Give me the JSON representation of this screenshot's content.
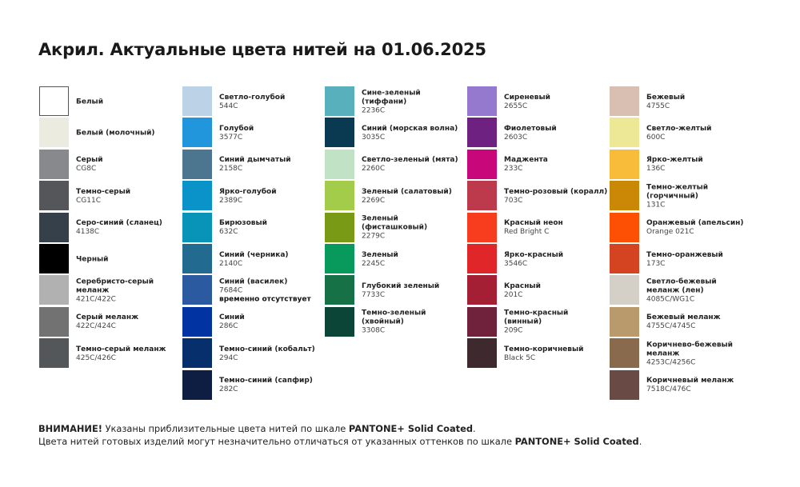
{
  "title": "Акрил. Актуальные цвета нитей на 01.06.2025",
  "columns": [
    [
      {
        "name": "Белый",
        "code": "",
        "color": "#ffffff",
        "border": true
      },
      {
        "name": "Белый (молочный)",
        "code": "",
        "color": "#ebebe0"
      },
      {
        "name": "Серый",
        "code": "CG8C",
        "color": "#88898c"
      },
      {
        "name": "Темно-серый",
        "code": "CG11C",
        "color": "#55565a"
      },
      {
        "name": "Серо-синий (сланец)",
        "code": "4138C",
        "color": "#36404a"
      },
      {
        "name": "Черный",
        "code": "",
        "color": "#000000"
      },
      {
        "name": "Серебристо-серый меланж",
        "code": "421C/422C",
        "color": "#b0b1b0"
      },
      {
        "name": "Серый меланж",
        "code": "422C/424C",
        "color": "#717271"
      },
      {
        "name": "Темно-серый меланж",
        "code": "425C/426C",
        "color": "#53575a"
      }
    ],
    [
      {
        "name": "Светло-голубой",
        "code": "544C",
        "color": "#bcd3e7"
      },
      {
        "name": "Голубой",
        "code": "3577C",
        "color": "#2196dc"
      },
      {
        "name": "Синий дымчатый",
        "code": "2158C",
        "color": "#4c7690"
      },
      {
        "name": "Ярко-голубой",
        "code": "2389C",
        "color": "#0993c8"
      },
      {
        "name": "Бирюзовый",
        "code": "632C",
        "color": "#0893b8"
      },
      {
        "name": "Синий (черника)",
        "code": "2140C",
        "color": "#226a90"
      },
      {
        "name": "Синий (василек)",
        "code": "7684C",
        "status": "временно отсутствует",
        "color": "#2c5aa0"
      },
      {
        "name": "Синий",
        "code": "286C",
        "color": "#0233a3"
      },
      {
        "name": "Темно-синий (кобальт)",
        "code": "294C",
        "color": "#072f6c"
      },
      {
        "name": "Темно-синий (сапфир)",
        "code": "282C",
        "color": "#0e1d42"
      }
    ],
    [
      {
        "name": "Сине-зеленый (тиффани)",
        "code": "2236C",
        "color": "#58b0bd"
      },
      {
        "name": "Синий (морская волна)",
        "code": "3035C",
        "color": "#0a3a52"
      },
      {
        "name": "Светло-зеленый (мята)",
        "code": "2260C",
        "color": "#c2e2c6"
      },
      {
        "name": "Зеленый (салатовый)",
        "code": "2269C",
        "color": "#a2cc4a"
      },
      {
        "name": "Зеленый (фисташковый)",
        "code": "2279C",
        "color": "#789a14"
      },
      {
        "name": "Зеленый",
        "code": "2245C",
        "color": "#079a5c"
      },
      {
        "name": "Глубокий зеленый",
        "code": "7733C",
        "color": "#177147"
      },
      {
        "name": "Темно-зеленый (хвойный)",
        "code": "3308C",
        "color": "#0a4538"
      }
    ],
    [
      {
        "name": "Сиреневый",
        "code": "2655C",
        "color": "#9479cf"
      },
      {
        "name": "Фиолетовый",
        "code": "2603C",
        "color": "#6e2181"
      },
      {
        "name": "Маджента",
        "code": "233C",
        "color": "#c8087a"
      },
      {
        "name": "Темно-розовый (коралл)",
        "code": "703C",
        "color": "#bc3a4c"
      },
      {
        "name": "Красный неон",
        "code": "Red Bright C",
        "color": "#f83c1e"
      },
      {
        "name": "Ярко-красный",
        "code": "3546C",
        "color": "#e02628"
      },
      {
        "name": "Красный",
        "code": "201C",
        "color": "#a41e34"
      },
      {
        "name": "Темно-красный (винный)",
        "code": "209C",
        "color": "#70213c"
      },
      {
        "name": "Темно-коричневый",
        "code": "Black 5C",
        "color": "#3e2a2e"
      }
    ],
    [
      {
        "name": "Бежевый",
        "code": "4755C",
        "color": "#d8bfb2"
      },
      {
        "name": "Светло-желтый",
        "code": "600C",
        "color": "#ede895"
      },
      {
        "name": "Ярко-желтый",
        "code": "136C",
        "color": "#f8bc3a"
      },
      {
        "name": "Темно-желтый (горчичный)",
        "code": "131C",
        "color": "#ca8806"
      },
      {
        "name": "Оранжевый (апельсин)",
        "code": "Orange 021C",
        "color": "#fd5004"
      },
      {
        "name": "Темно-оранжевый",
        "code": "173C",
        "color": "#d44420"
      },
      {
        "name": "Светло-бежевый меланж (лен)",
        "code": "4085C/WG1C",
        "color": "#d4d0c8"
      },
      {
        "name": "Бежевый меланж",
        "code": "4755C/4745C",
        "color": "#b89a6c"
      },
      {
        "name": "Коричнево-бежевый меланж",
        "code": "4253C/4256C",
        "color": "#8a6a4c"
      },
      {
        "name": "Коричневый меланж",
        "code": "7518C/476C",
        "color": "#6a4a44"
      }
    ]
  ],
  "notes": {
    "line1": {
      "bold1": "ВНИМАНИЕ!",
      "text": " Указаны приблизительные цвета нитей по шкале ",
      "bold2": "PANTONE+ Solid Coated",
      "end": "."
    },
    "line2": {
      "text": "Цвета нитей готовых изделий могут незначительно отличаться от указанных оттенков по шкале ",
      "bold2": "PANTONE+ Solid Coated",
      "end": "."
    }
  }
}
